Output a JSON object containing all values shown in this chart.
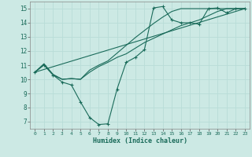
{
  "xlabel": "Humidex (Indice chaleur)",
  "xlim": [
    -0.5,
    23.5
  ],
  "ylim": [
    6.5,
    15.5
  ],
  "xticks": [
    0,
    1,
    2,
    3,
    4,
    5,
    6,
    7,
    8,
    9,
    10,
    11,
    12,
    13,
    14,
    15,
    16,
    17,
    18,
    19,
    20,
    21,
    22,
    23
  ],
  "yticks": [
    7,
    8,
    9,
    10,
    11,
    12,
    13,
    14,
    15
  ],
  "bg_color": "#cce9e4",
  "line_color": "#1a6b5a",
  "grid_color": "#b8ddd8",
  "s1x": [
    0,
    1,
    2,
    3,
    4,
    5,
    6,
    7,
    8,
    9,
    10,
    11,
    12,
    13,
    14,
    15,
    16,
    17,
    18,
    19,
    20,
    21,
    22,
    23
  ],
  "s1y": [
    10.5,
    11.0,
    10.3,
    9.8,
    9.6,
    8.4,
    7.3,
    6.8,
    6.85,
    9.3,
    11.2,
    11.55,
    12.1,
    15.05,
    15.15,
    14.2,
    14.0,
    14.0,
    13.9,
    15.0,
    15.05,
    14.7,
    15.0,
    15.0
  ],
  "s2x": [
    0,
    23
  ],
  "s2y": [
    10.5,
    15.0
  ],
  "s3x": [
    0,
    1,
    2,
    3,
    4,
    5,
    6,
    7,
    8,
    9,
    10,
    11,
    12,
    13,
    14,
    15,
    16,
    17,
    18,
    19,
    20,
    21,
    22,
    23
  ],
  "s3y": [
    10.5,
    11.05,
    10.3,
    10.0,
    10.05,
    10.0,
    10.5,
    10.9,
    11.2,
    11.55,
    11.8,
    12.2,
    12.6,
    12.9,
    13.2,
    13.5,
    13.8,
    14.0,
    14.2,
    14.5,
    14.8,
    15.0,
    15.0,
    15.0
  ],
  "s4x": [
    0,
    1,
    2,
    3,
    4,
    5,
    6,
    7,
    8,
    9,
    10,
    11,
    12,
    13,
    14,
    15,
    16,
    17,
    18,
    19,
    20,
    21,
    22,
    23
  ],
  "s4y": [
    10.5,
    11.1,
    10.35,
    10.0,
    10.05,
    10.0,
    10.65,
    11.0,
    11.3,
    11.85,
    12.4,
    12.95,
    13.45,
    13.95,
    14.4,
    14.8,
    15.0,
    15.0,
    15.0,
    15.0,
    15.0,
    15.0,
    15.0,
    15.0
  ]
}
